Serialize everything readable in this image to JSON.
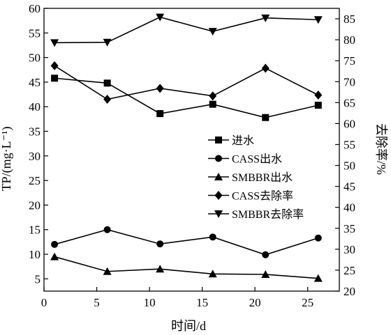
{
  "chart_data": {
    "type": "line",
    "xlabel": "时间/d",
    "ylabel": "TP/(mg·L⁻¹)",
    "y2label": "去除率/%",
    "xlim": [
      0,
      28
    ],
    "ylim": [
      2.5,
      60
    ],
    "y2lim": [
      20,
      87.5
    ],
    "xticks": [
      0,
      5,
      10,
      15,
      20,
      25
    ],
    "yticks": [
      5,
      10,
      15,
      20,
      25,
      30,
      35,
      40,
      45,
      50,
      55,
      60
    ],
    "y2ticks": [
      20,
      25,
      30,
      35,
      40,
      45,
      50,
      55,
      60,
      65,
      70,
      75,
      80,
      85
    ],
    "grid": false,
    "legend_position": "center-right",
    "series": [
      {
        "name": "进水",
        "axis": "left",
        "marker": "square",
        "x": [
          1,
          6,
          11,
          16,
          21,
          26
        ],
        "values": [
          45.8,
          44.8,
          38.6,
          40.5,
          37.8,
          40.3
        ]
      },
      {
        "name": "CASS出水",
        "axis": "left",
        "marker": "circle",
        "x": [
          1,
          6,
          11,
          16,
          21,
          26
        ],
        "values": [
          12.0,
          15.0,
          12.1,
          13.5,
          9.9,
          13.3
        ]
      },
      {
        "name": "SMBBR出水",
        "axis": "left",
        "marker": "triangle-up",
        "x": [
          1,
          6,
          11,
          16,
          21,
          26
        ],
        "values": [
          9.5,
          6.5,
          7.0,
          6.0,
          5.9,
          5.1
        ]
      },
      {
        "name": "CASS去除率",
        "axis": "right",
        "marker": "diamond",
        "x": [
          1,
          6,
          11,
          16,
          21,
          26
        ],
        "values": [
          73.8,
          65.8,
          68.4,
          66.6,
          73.2,
          66.8
        ]
      },
      {
        "name": "SMBBR去除率",
        "axis": "right",
        "marker": "triangle-down",
        "x": [
          1,
          6,
          11,
          16,
          21,
          26
        ],
        "values": [
          79.3,
          79.4,
          85.4,
          82.0,
          85.2,
          84.8
        ]
      }
    ]
  }
}
